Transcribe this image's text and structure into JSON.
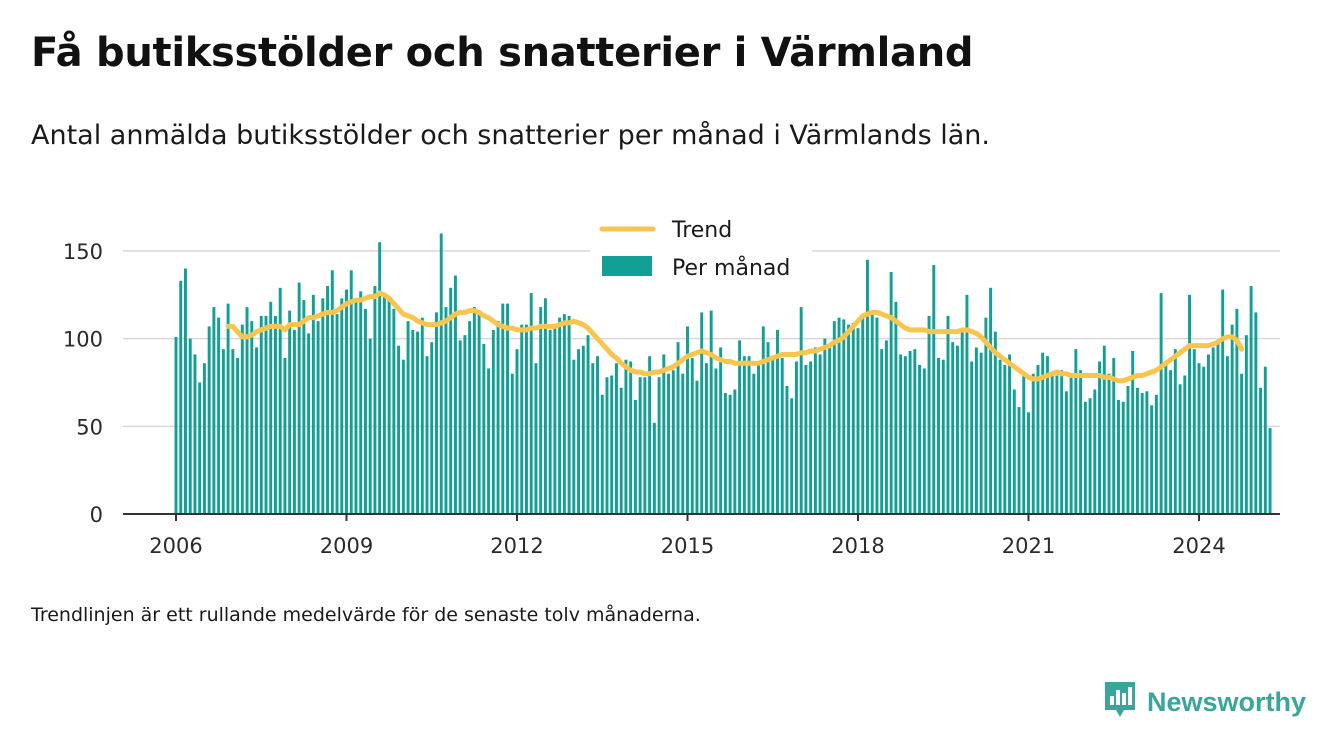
{
  "title": "Få butiksstölder och snatterier i Värmland",
  "subtitle": "Antal anmälda butiksstölder och snatterier per månad i Värmlands län.",
  "footnote": "Trendlinjen är ett rullande medelvärde för de senaste tolv månaderna.",
  "brand": {
    "name": "Newsworthy",
    "icon": "newsworthy-logo-icon",
    "color": "#3aa59a"
  },
  "colors": {
    "bars": "#12a096",
    "trend": "#f9c54e",
    "grid": "#d9d9d9",
    "axis": "#333333"
  },
  "chart_data": {
    "type": "bar",
    "x_unit": "month",
    "x_start": "2006-01",
    "x_ticks": [
      "2006",
      "2009",
      "2012",
      "2015",
      "2018",
      "2021",
      "2024"
    ],
    "y_ticks": [
      0,
      50,
      100,
      150
    ],
    "ylim": [
      0,
      165
    ],
    "grid": true,
    "legend_position": "top-center",
    "series": [
      {
        "name": "Per månad",
        "type": "bar",
        "values": [
          101,
          133,
          140,
          100,
          91,
          75,
          86,
          107,
          118,
          112,
          94,
          120,
          94,
          89,
          108,
          118,
          110,
          95,
          113,
          113,
          121,
          113,
          129,
          89,
          116,
          105,
          132,
          122,
          103,
          125,
          110,
          123,
          130,
          139,
          114,
          123,
          128,
          139,
          122,
          127,
          117,
          100,
          130,
          155,
          124,
          122,
          117,
          96,
          88,
          110,
          105,
          104,
          112,
          90,
          98,
          115,
          160,
          118,
          129,
          136,
          99,
          102,
          110,
          118,
          116,
          97,
          83,
          105,
          110,
          120,
          120,
          80,
          94,
          108,
          108,
          126,
          86,
          118,
          123,
          105,
          107,
          112,
          114,
          113,
          88,
          94,
          96,
          102,
          86,
          90,
          68,
          78,
          79,
          86,
          72,
          88,
          87,
          65,
          78,
          78,
          90,
          52,
          78,
          91,
          80,
          82,
          98,
          80,
          107,
          89,
          76,
          115,
          86,
          116,
          83,
          95,
          69,
          68,
          71,
          99,
          90,
          90,
          80,
          86,
          107,
          98,
          89,
          105,
          89,
          73,
          66,
          87,
          118,
          85,
          87,
          95,
          91,
          100,
          96,
          110,
          112,
          111,
          108,
          109,
          106,
          113,
          145,
          116,
          112,
          94,
          99,
          138,
          121,
          91,
          90,
          93,
          94,
          85,
          83,
          113,
          142,
          89,
          88,
          113,
          98,
          96,
          106,
          125,
          87,
          95,
          92,
          112,
          129,
          104,
          88,
          85,
          91,
          71,
          61,
          81,
          58,
          80,
          85,
          92,
          90,
          80,
          79,
          82,
          70,
          79,
          94,
          82,
          64,
          66,
          71,
          87,
          96,
          80,
          89,
          65,
          64,
          73,
          93,
          72,
          69,
          70,
          62,
          68,
          126,
          87,
          82,
          94,
          74,
          79,
          125,
          94,
          86,
          84,
          91,
          95,
          98,
          128,
          90,
          108,
          117,
          80,
          102,
          130,
          115,
          72,
          84,
          49
        ]
      },
      {
        "name": "Trend",
        "type": "line",
        "values": [
          null,
          null,
          null,
          null,
          null,
          null,
          null,
          null,
          null,
          null,
          null,
          107,
          107,
          104,
          101,
          101,
          102,
          104,
          105,
          106,
          107,
          107,
          107,
          105,
          108,
          108,
          108,
          110,
          112,
          112,
          113,
          114,
          115,
          115,
          116,
          118,
          120,
          121,
          122,
          122,
          123,
          124,
          124,
          126,
          125,
          123,
          120,
          117,
          114,
          113,
          112,
          110,
          109,
          108,
          108,
          108,
          109,
          110,
          112,
          114,
          115,
          115,
          116,
          116,
          115,
          113,
          112,
          110,
          108,
          107,
          106,
          106,
          105,
          105,
          105,
          106,
          106,
          107,
          107,
          107,
          107,
          108,
          109,
          109,
          110,
          109,
          108,
          106,
          103,
          100,
          97,
          94,
          91,
          89,
          86,
          84,
          82,
          81,
          81,
          80,
          80,
          81,
          81,
          82,
          83,
          84,
          86,
          88,
          90,
          91,
          92,
          93,
          92,
          91,
          89,
          88,
          87,
          87,
          86,
          86,
          86,
          86,
          86,
          86,
          87,
          88,
          89,
          90,
          91,
          91,
          91,
          91,
          92,
          92,
          93,
          93,
          94,
          95,
          96,
          98,
          99,
          101,
          104,
          107,
          110,
          113,
          114,
          115,
          115,
          114,
          113,
          112,
          110,
          108,
          106,
          105,
          105,
          105,
          105,
          104,
          104,
          104,
          104,
          104,
          104,
          104,
          105,
          105,
          104,
          103,
          101,
          98,
          95,
          92,
          90,
          88,
          86,
          84,
          82,
          80,
          78,
          77,
          77,
          78,
          79,
          80,
          81,
          80,
          80,
          79,
          79,
          79,
          79,
          79,
          79,
          79,
          78,
          78,
          77,
          76,
          76,
          77,
          78,
          79,
          79,
          80,
          81,
          82,
          84,
          86,
          88,
          90,
          92,
          94,
          96,
          96,
          96,
          96,
          96,
          97,
          98,
          100,
          101,
          101,
          99,
          94
        ]
      }
    ]
  }
}
